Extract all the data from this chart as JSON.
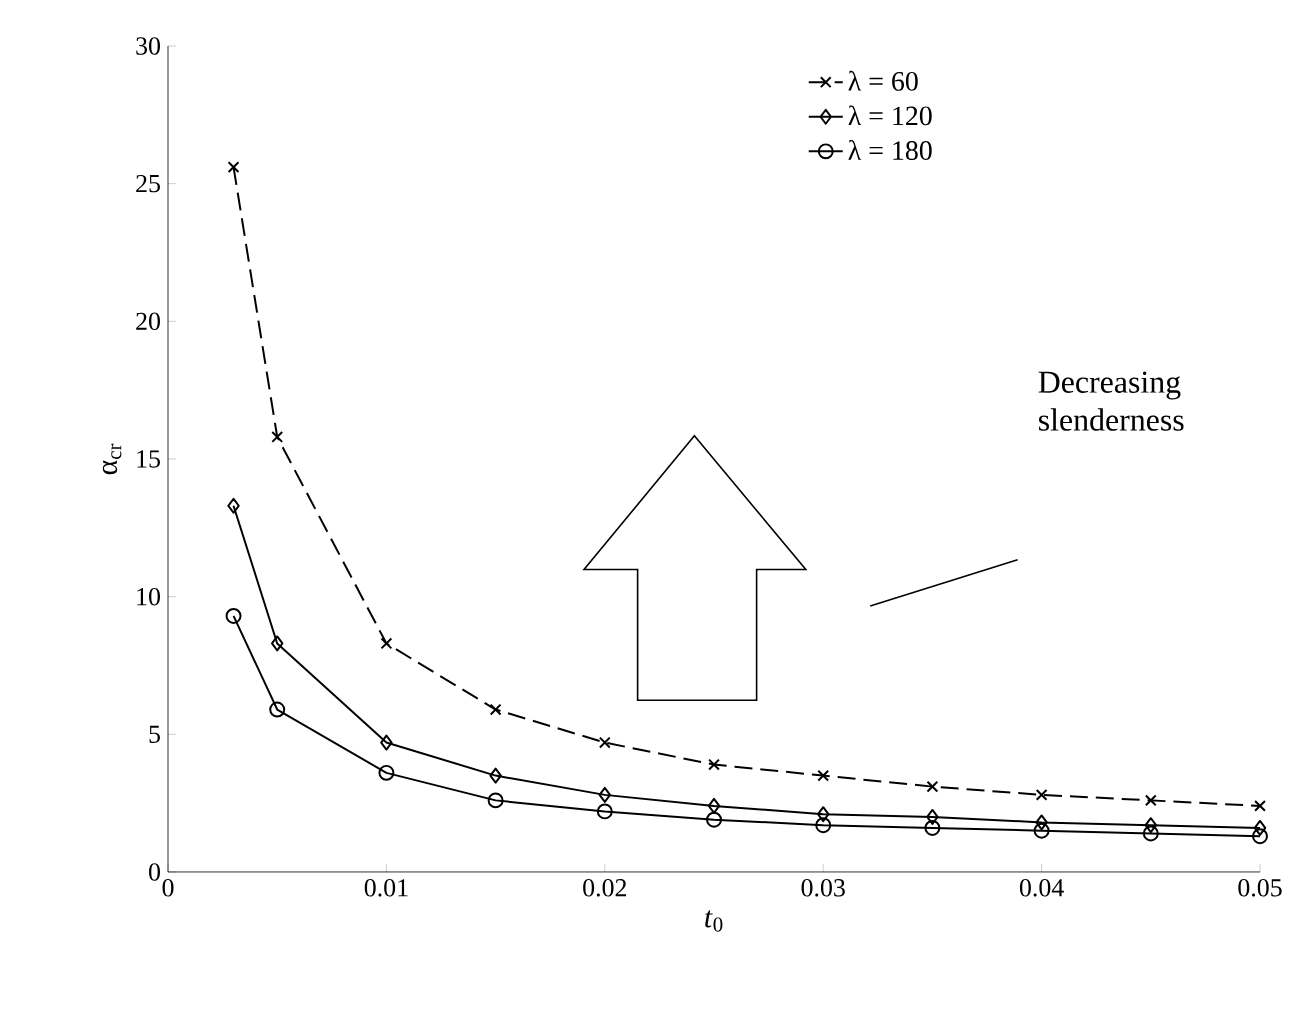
{
  "chart_data": {
    "type": "line",
    "xlabel": "*t*$_{0}$",
    "ylabel": "α$_{cr}$",
    "x": [
      0.003,
      0.005,
      0.01,
      0.015,
      0.02,
      0.025,
      0.03,
      0.035,
      0.04,
      0.045,
      0.05
    ],
    "series": [
      {
        "name": "λ = 60",
        "color": "#000000",
        "marker": "cross",
        "line_style": "dashed",
        "values": [
          25.6,
          15.8,
          8.3,
          5.9,
          4.7,
          3.9,
          3.5,
          3.1,
          2.8,
          2.6,
          2.4
        ]
      },
      {
        "name": "λ = 120",
        "color": "#000000",
        "marker": "diamond",
        "line_style": "solid",
        "values": [
          13.3,
          8.3,
          4.7,
          3.5,
          2.8,
          2.4,
          2.1,
          2.0,
          1.8,
          1.7,
          1.6
        ]
      },
      {
        "name": "λ = 180",
        "color": "#000000",
        "marker": "circle",
        "line_style": "solid",
        "values": [
          9.3,
          5.9,
          3.6,
          2.6,
          2.2,
          1.9,
          1.7,
          1.6,
          1.5,
          1.4,
          1.3
        ]
      }
    ],
    "xlim": [
      0,
      0.05
    ],
    "xticks": [
      0,
      0.01,
      0.02,
      0.03,
      0.04,
      0.05
    ],
    "ylim": [
      0,
      30
    ],
    "yticks": [
      0,
      5,
      10,
      15,
      20,
      25,
      30
    ],
    "grid": false,
    "legend": "top right",
    "annotations": [
      "Decreasing slenderness"
    ]
  }
}
